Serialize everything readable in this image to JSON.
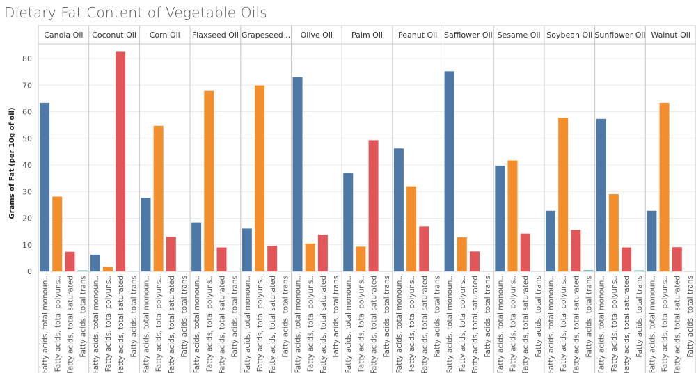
{
  "colors": {
    "monounsaturated": "#4e79a7",
    "polyunsaturated": "#f28e2b",
    "saturated": "#e15759",
    "trans": "#76b7b2",
    "grid": "#ececec",
    "axis": "#c8c8c8"
  },
  "chart_data": {
    "type": "bar",
    "title": "Dietary Fat Content of Vegetable Oils",
    "ylabel": "Grams of Fat (per 10g of oil)",
    "ylim": [
      0,
      85
    ],
    "yticks": [
      0,
      10,
      20,
      30,
      40,
      50,
      60,
      70,
      80
    ],
    "grid": true,
    "category_labels": [
      "Fatty acids, total monoun..",
      "Fatty acids, total polyuns..",
      "Fatty acids, total saturated",
      "Fatty acids, total trans"
    ],
    "categories": [
      "Fatty acids, total monounsaturated",
      "Fatty acids, total polyunsaturated",
      "Fatty acids, total saturated",
      "Fatty acids, total trans"
    ],
    "panel_labels": [
      "Canola Oil",
      "Coconut Oil",
      "Corn Oil",
      "Flaxseed Oil",
      "Grapeseed ..",
      "Olive Oil",
      "Palm Oil",
      "Peanut Oil",
      "Safflower Oil",
      "Sesame Oil",
      "Soybean Oil",
      "Sunflower Oil",
      "Walnut Oil"
    ],
    "panels": [
      {
        "name": "Canola Oil",
        "values": [
          63.3,
          28.1,
          7.4,
          0.4
        ]
      },
      {
        "name": "Coconut Oil",
        "values": [
          6.3,
          1.7,
          82.5,
          0.0
        ]
      },
      {
        "name": "Corn Oil",
        "values": [
          27.6,
          54.7,
          13.0,
          0.0
        ]
      },
      {
        "name": "Flaxseed Oil",
        "values": [
          18.4,
          67.8,
          9.0,
          0.0
        ]
      },
      {
        "name": "Grapeseed Oil",
        "values": [
          16.1,
          69.9,
          9.6,
          0.0
        ]
      },
      {
        "name": "Olive Oil",
        "values": [
          73.0,
          10.5,
          13.8,
          0.0
        ]
      },
      {
        "name": "Palm Oil",
        "values": [
          37.0,
          9.3,
          49.3,
          0.0
        ]
      },
      {
        "name": "Peanut Oil",
        "values": [
          46.2,
          32.0,
          16.9,
          0.0
        ]
      },
      {
        "name": "Safflower Oil",
        "values": [
          75.2,
          12.8,
          7.5,
          0.0
        ]
      },
      {
        "name": "Sesame Oil",
        "values": [
          39.7,
          41.7,
          14.2,
          0.0
        ]
      },
      {
        "name": "Soybean Oil",
        "values": [
          22.8,
          57.7,
          15.6,
          0.5
        ]
      },
      {
        "name": "Sunflower Oil",
        "values": [
          57.3,
          29.0,
          9.0,
          0.2
        ]
      },
      {
        "name": "Walnut Oil",
        "values": [
          22.8,
          63.3,
          9.1,
          0.0
        ]
      }
    ]
  }
}
